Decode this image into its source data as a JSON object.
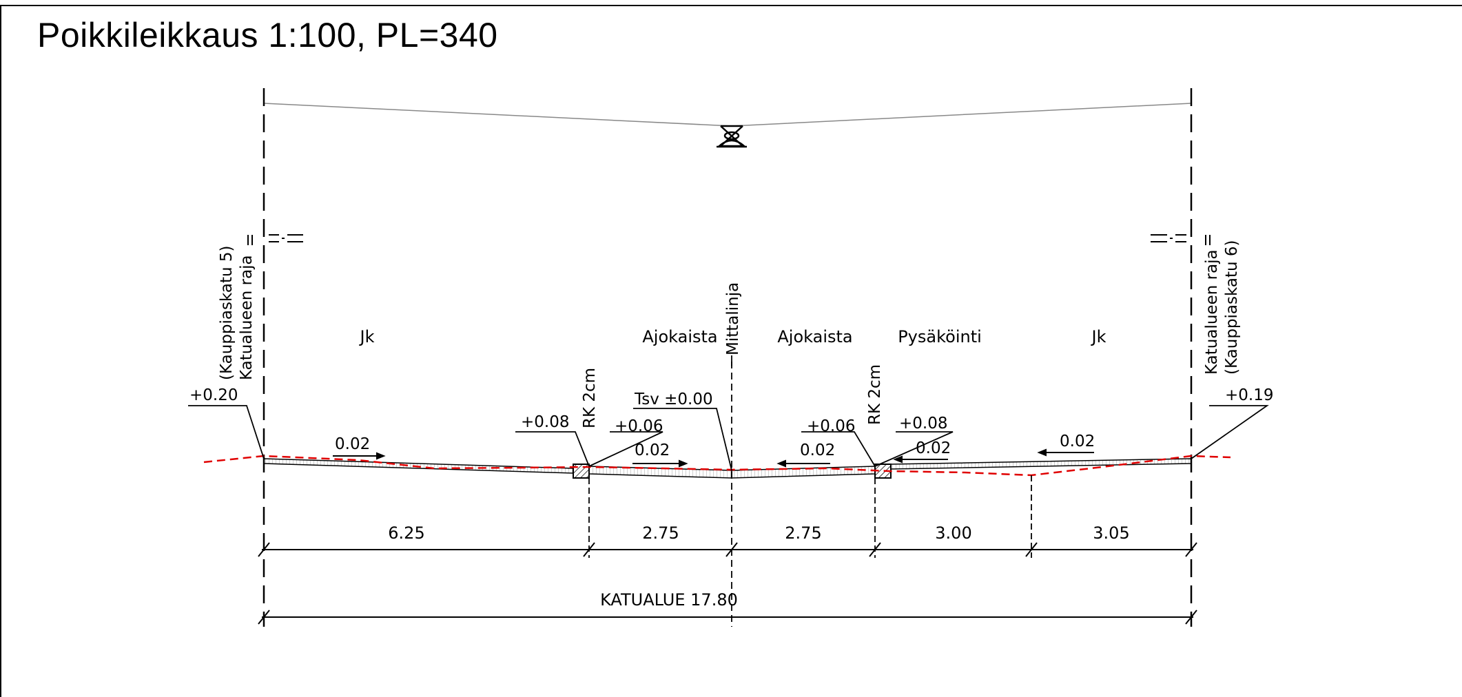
{
  "title": "Poikkileikkaus 1:100, PL=340",
  "lanes": {
    "left_walk": "Jk",
    "lane_left": "Ajokaista",
    "lane_right": "Ajokaista",
    "parking": "Pysäköinti",
    "right_walk": "Jk"
  },
  "boundary_left": {
    "line1": "(Kauppiaskatu 5)",
    "line2": "Katualueen raja"
  },
  "boundary_right": {
    "line1": "Katualueen raja",
    "line2": "(Kauppiaskatu 6)"
  },
  "centerline_label": "Mittalinja",
  "curb_left_label": "RK 2cm",
  "curb_right_label": "RK 2cm",
  "elevations": {
    "left_edge": "+0.20",
    "curb_left_top": "+0.08",
    "curb_left_bottom": "+0.06",
    "center": "Tsv ±0.00",
    "curb_right_bottom": "+0.06",
    "curb_right_top": "+0.08",
    "right_edge": "+0.19"
  },
  "slopes": {
    "left_walk": "0.02",
    "lane_left": "0.02",
    "lane_right": "0.02",
    "parking": "0.02",
    "right_walk": "0.02"
  },
  "widths": [
    "6.25",
    "2.75",
    "2.75",
    "3.00",
    "3.05"
  ],
  "total": "KATUALUE 17.80",
  "colors": {
    "line": "#000000",
    "existing_ground": "#e00000",
    "light_line": "#888888"
  }
}
